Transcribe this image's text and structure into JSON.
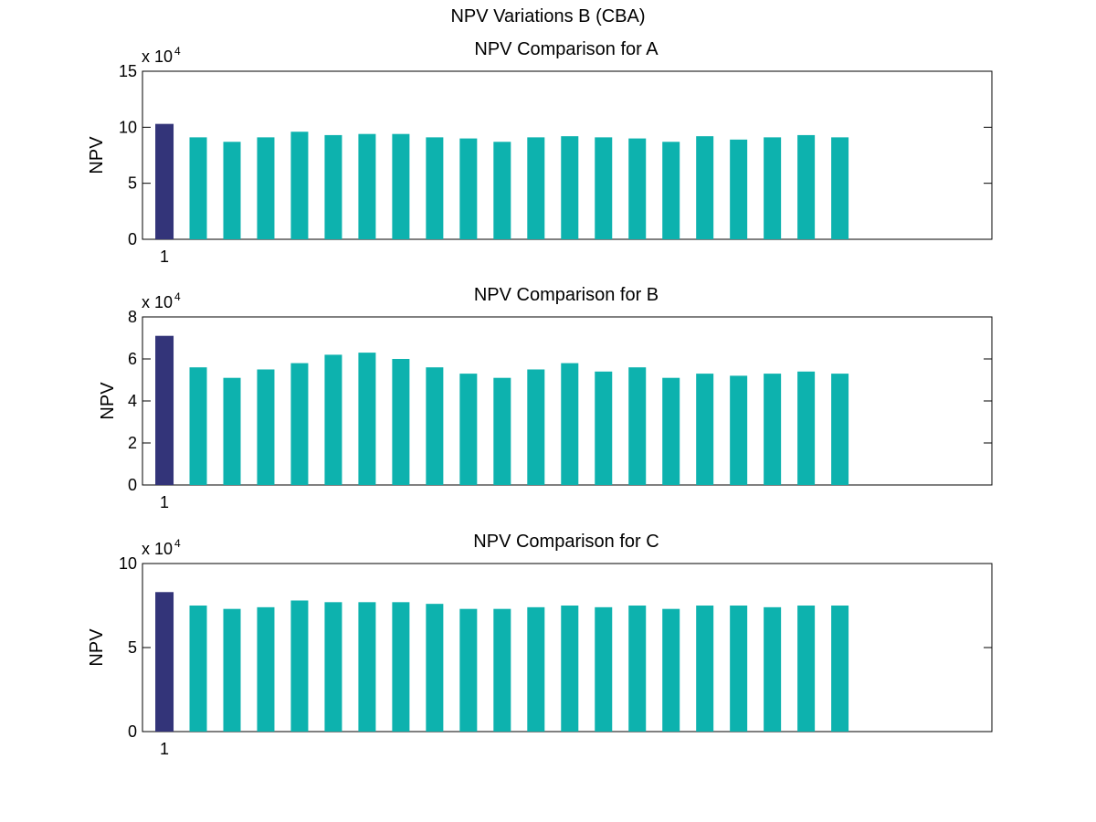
{
  "figure_title": "NPV Variations B (CBA)",
  "colors": {
    "first_bar": "#333479",
    "other_bars": "#0DB2AE",
    "axes": "#000000",
    "background": "#FFFFFF"
  },
  "chart_data": [
    {
      "type": "bar",
      "title": "NPV Comparison for A",
      "xlabel": "",
      "ylabel": "NPV",
      "exponent_label": {
        "base": "x 10",
        "sup": "4"
      },
      "exponent": 4,
      "ylim": [
        0,
        15
      ],
      "yticks": [
        "0",
        "5",
        "10",
        "15"
      ],
      "xticks": [
        "1"
      ],
      "grid": false,
      "values": [
        10.3,
        9.1,
        8.7,
        9.1,
        9.6,
        9.3,
        9.4,
        9.4,
        9.1,
        9.0,
        8.7,
        9.1,
        9.2,
        9.1,
        9.0,
        8.7,
        9.2,
        8.9,
        9.1,
        9.3,
        9.1
      ]
    },
    {
      "type": "bar",
      "title": "NPV Comparison for B",
      "xlabel": "",
      "ylabel": "NPV",
      "exponent_label": {
        "base": "x 10",
        "sup": "4"
      },
      "exponent": 4,
      "ylim": [
        0,
        8
      ],
      "yticks": [
        "0",
        "2",
        "4",
        "6",
        "8"
      ],
      "xticks": [
        "1"
      ],
      "grid": false,
      "values": [
        7.1,
        5.6,
        5.1,
        5.5,
        5.8,
        6.2,
        6.3,
        6.0,
        5.6,
        5.3,
        5.1,
        5.5,
        5.8,
        5.4,
        5.6,
        5.1,
        5.3,
        5.2,
        5.3,
        5.4,
        5.3
      ]
    },
    {
      "type": "bar",
      "title": "NPV Comparison for C",
      "xlabel": "",
      "ylabel": "NPV",
      "exponent_label": {
        "base": "x 10",
        "sup": "4"
      },
      "exponent": 4,
      "ylim": [
        0,
        10
      ],
      "yticks": [
        "0",
        "5",
        "10"
      ],
      "xticks": [
        "1"
      ],
      "grid": false,
      "values": [
        8.3,
        7.5,
        7.3,
        7.4,
        7.8,
        7.7,
        7.7,
        7.7,
        7.6,
        7.3,
        7.3,
        7.4,
        7.5,
        7.4,
        7.5,
        7.3,
        7.5,
        7.5,
        7.4,
        7.5,
        7.5
      ]
    }
  ]
}
